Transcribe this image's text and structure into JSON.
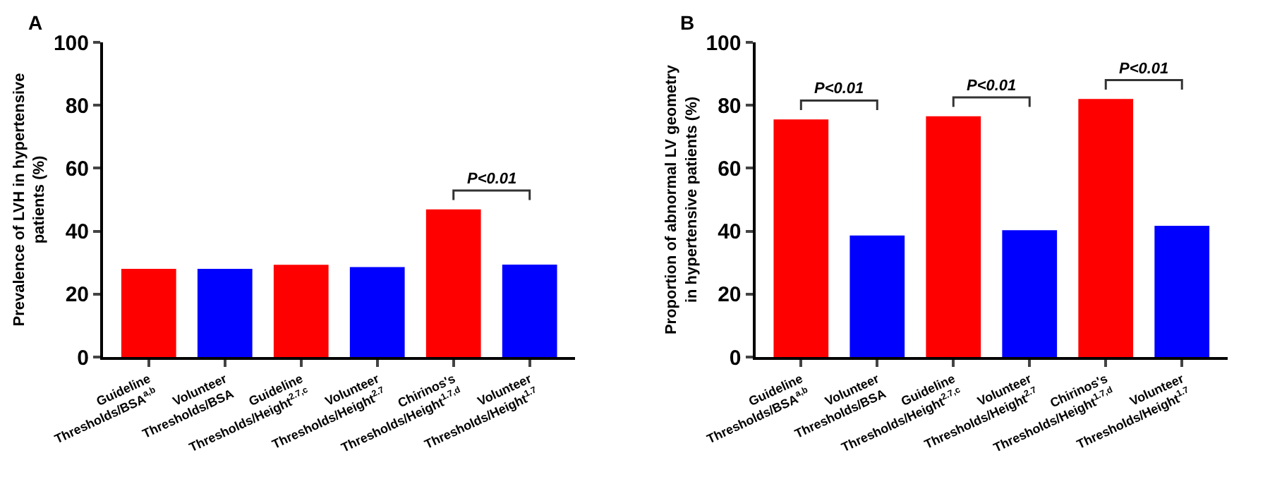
{
  "chart_data": [
    {
      "type": "bar",
      "title": "A",
      "ylabel": "Prevalence of LVH in hypertensive patients (%)",
      "categories": [
        "Guideline Thresholds/BSA$^{a,b}$",
        "Volunteer Thresholds/BSA",
        "Guideline Thresholds/Height$^{2.7,c}$",
        "Volunteer Thresholds/Height$^{2.7}$",
        "Chirinos's Thresholds/Height$^{1.7,d}$",
        "Volunteer Thresholds/Height$^{1.7}$"
      ],
      "values": [
        28,
        28,
        29.3,
        28.6,
        46.9,
        29.4
      ],
      "colors": [
        "#ff0000",
        "#0000ff",
        "#ff0000",
        "#0000ff",
        "#ff0000",
        "#0000ff"
      ],
      "ylim": [
        0,
        100
      ],
      "yticks": [
        0,
        20,
        40,
        60,
        80,
        100
      ],
      "annotations": [
        "P<0.01"
      ]
    },
    {
      "type": "bar",
      "title": "B",
      "ylabel": "Proportion of abnormal LV geometry in hypertensive patients (%)",
      "categories": [
        "Guideline Thresholds/BSA$^{a,b}$",
        "Volunteer Thresholds/BSA",
        "Guideline Thresholds/Height$^{2.7,c}$",
        "Volunteer Thresholds/Height$^{2.7}$",
        "Chirinos's Thresholds/Height$^{1.7,d}$",
        "Volunteer Thresholds/Height$^{1.7}$"
      ],
      "values": [
        75.5,
        38.6,
        76.5,
        40.3,
        82,
        41.7
      ],
      "colors": [
        "#ff0000",
        "#0000ff",
        "#ff0000",
        "#0000ff",
        "#ff0000",
        "#0000ff"
      ],
      "ylim": [
        0,
        100
      ],
      "yticks": [
        0,
        20,
        40,
        60,
        80,
        100
      ],
      "annotations": [
        "P<0.01",
        "P<0.01",
        "P<0.01"
      ]
    }
  ]
}
